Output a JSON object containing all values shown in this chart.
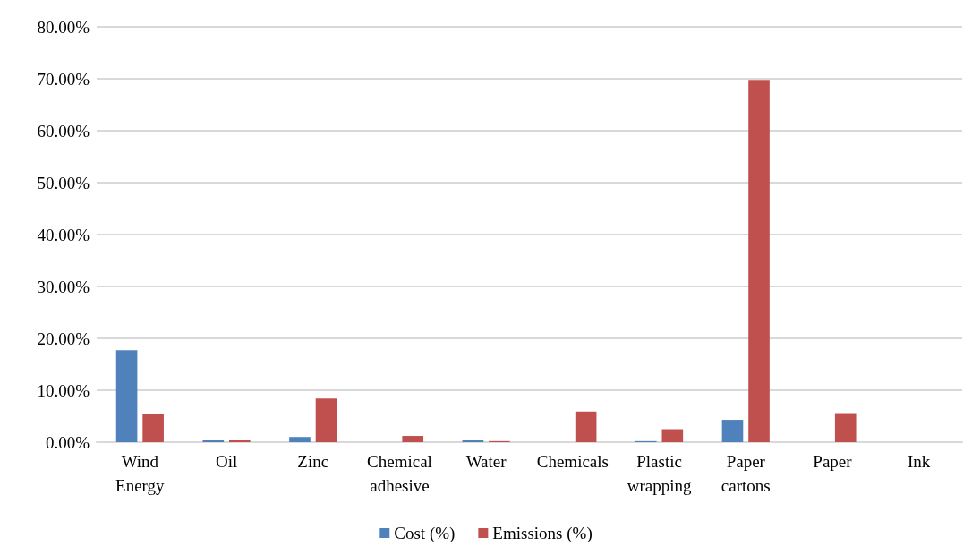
{
  "chart_data": {
    "type": "bar",
    "categories": [
      "Wind Energy",
      "Oil",
      "Zinc",
      "Chemical adhesive",
      "Water",
      "Chemicals",
      "Plastic wrapping",
      "Paper cartons",
      "Paper",
      "Ink"
    ],
    "series": [
      {
        "name": "Cost (%)",
        "color": "#4f81bd",
        "values": [
          17.7,
          0.4,
          1.0,
          0,
          0.5,
          0,
          0.2,
          4.3,
          0,
          0
        ]
      },
      {
        "name": "Emissions (%)",
        "color": "#c0504d",
        "values": [
          5.4,
          0.5,
          8.4,
          1.2,
          0.2,
          5.9,
          2.5,
          69.8,
          5.6,
          0
        ]
      }
    ],
    "ylim": [
      0,
      80
    ],
    "yticks": [
      {
        "value": 0,
        "label": "0.00%"
      },
      {
        "value": 10,
        "label": "10.00%"
      },
      {
        "value": 20,
        "label": "20.00%"
      },
      {
        "value": 30,
        "label": "30.00%"
      },
      {
        "value": 40,
        "label": "40.00%"
      },
      {
        "value": 50,
        "label": "50.00%"
      },
      {
        "value": 60,
        "label": "60.00%"
      },
      {
        "value": 70,
        "label": "70.00%"
      },
      {
        "value": 80,
        "label": "80.00%"
      }
    ],
    "grid": "y",
    "legend": "bottom"
  }
}
